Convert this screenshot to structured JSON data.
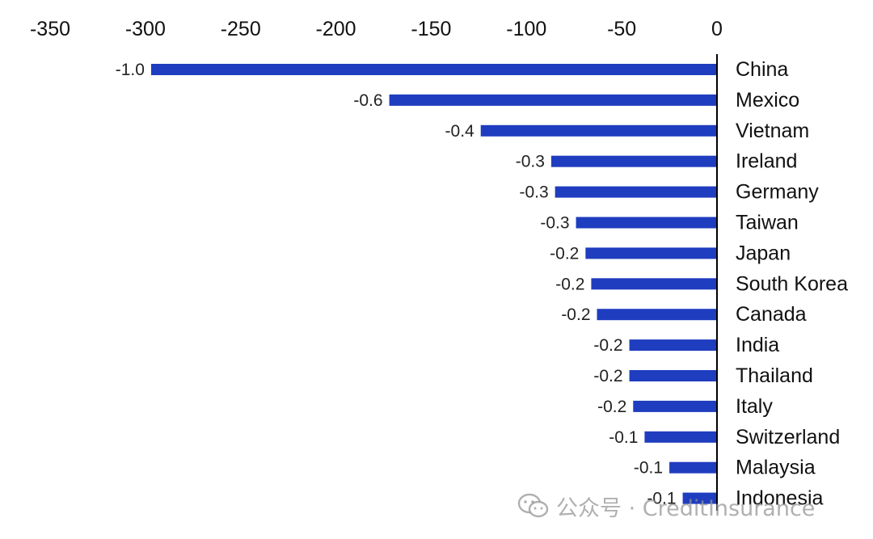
{
  "chart_data": {
    "type": "bar",
    "orientation": "horizontal",
    "title": "",
    "xlabel": "",
    "ylabel": "",
    "xlim": [
      -350,
      0
    ],
    "x_ticks": [
      -350,
      -300,
      -250,
      -200,
      -150,
      -100,
      -50,
      0
    ],
    "x_axis_position": "top",
    "grid": false,
    "bar_color": "#1f3dbf",
    "categories": [
      "China",
      "Mexico",
      "Vietnam",
      "Ireland",
      "Germany",
      "Taiwan",
      "Japan",
      "South Korea",
      "Canada",
      "India",
      "Thailand",
      "Italy",
      "Switzerland",
      "Malaysia",
      "Indonesia"
    ],
    "values": [
      -297,
      -172,
      -124,
      -87,
      -85,
      -74,
      -69,
      -66,
      -63,
      -46,
      -46,
      -44,
      -38,
      -25,
      -18
    ],
    "data_labels": [
      "-1.0",
      "-0.6",
      "-0.4",
      "-0.3",
      "-0.3",
      "-0.3",
      "-0.2",
      "-0.2",
      "-0.2",
      "-0.2",
      "-0.2",
      "-0.2",
      "-0.1",
      "-0.1",
      "-0.1"
    ]
  },
  "watermark": {
    "icon": "wechat-icon",
    "text": "公众号 · CreditInsurance"
  }
}
